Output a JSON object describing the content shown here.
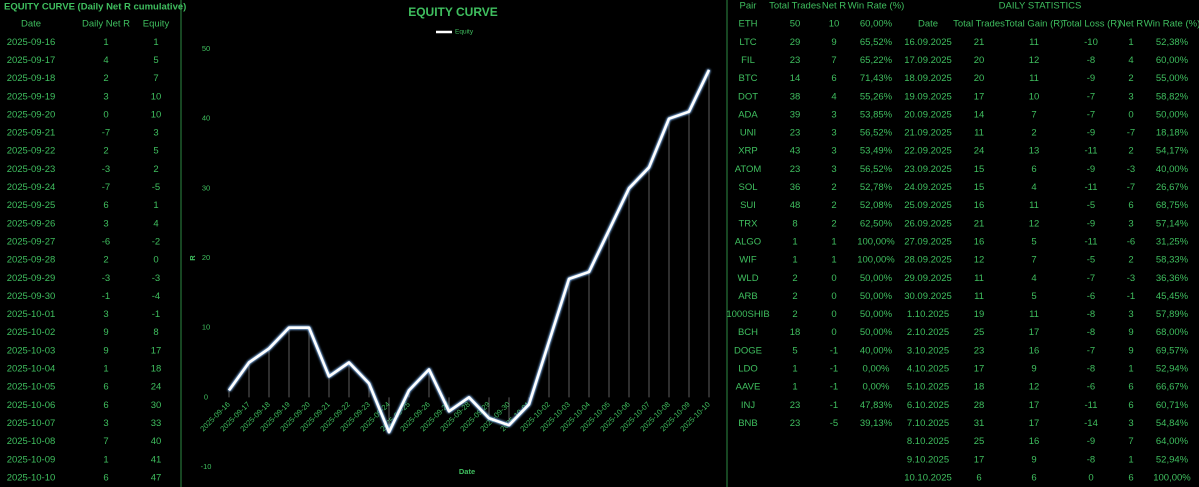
{
  "equity_table": {
    "title": "EQUITY CURVE (Daily Net R cumulative)",
    "columns": [
      "Date",
      "Daily Net R",
      "Equity"
    ],
    "rows": [
      [
        "2025-09-16",
        1,
        1
      ],
      [
        "2025-09-17",
        4,
        5
      ],
      [
        "2025-09-18",
        2,
        7
      ],
      [
        "2025-09-19",
        3,
        10
      ],
      [
        "2025-09-20",
        0,
        10
      ],
      [
        "2025-09-21",
        -7,
        3
      ],
      [
        "2025-09-22",
        2,
        5
      ],
      [
        "2025-09-23",
        -3,
        2
      ],
      [
        "2025-09-24",
        -7,
        -5
      ],
      [
        "2025-09-25",
        6,
        1
      ],
      [
        "2025-09-26",
        3,
        4
      ],
      [
        "2025-09-27",
        -6,
        -2
      ],
      [
        "2025-09-28",
        2,
        0
      ],
      [
        "2025-09-29",
        -3,
        -3
      ],
      [
        "2025-09-30",
        -1,
        -4
      ],
      [
        "2025-10-01",
        3,
        -1
      ],
      [
        "2025-10-02",
        9,
        8
      ],
      [
        "2025-10-03",
        9,
        17
      ],
      [
        "2025-10-04",
        1,
        18
      ],
      [
        "2025-10-05",
        6,
        24
      ],
      [
        "2025-10-06",
        6,
        30
      ],
      [
        "2025-10-07",
        3,
        33
      ],
      [
        "2025-10-08",
        7,
        40
      ],
      [
        "2025-10-09",
        1,
        41
      ],
      [
        "2025-10-10",
        6,
        47
      ]
    ]
  },
  "chart_data": {
    "type": "line",
    "title": "EQUITY CURVE",
    "x_label": "Date",
    "y_label": "R",
    "categories": [
      "2025-09-16",
      "2025-09-17",
      "2025-09-18",
      "2025-09-19",
      "2025-09-20",
      "2025-09-21",
      "2025-09-22",
      "2025-09-23",
      "2025-09-24",
      "2025-09-25",
      "2025-09-26",
      "2025-09-27",
      "2025-09-28",
      "2025-09-29",
      "2025-09-30",
      "2025-10-01",
      "2025-10-02",
      "2025-10-03",
      "2025-10-04",
      "2025-10-05",
      "2025-10-06",
      "2025-10-07",
      "2025-10-08",
      "2025-10-09",
      "2025-10-10"
    ],
    "series": [
      {
        "name": "Equity",
        "color": "#ffffff",
        "values": [
          1,
          5,
          7,
          10,
          10,
          3,
          5,
          2,
          -5,
          1,
          4,
          -2,
          0,
          -3,
          -4,
          -1,
          8,
          17,
          18,
          24,
          30,
          33,
          40,
          41,
          47
        ]
      }
    ],
    "ylim": [
      -10,
      50
    ],
    "yticks": [
      -10,
      0,
      10,
      20,
      30,
      40,
      50
    ],
    "legend": "top"
  },
  "pair_table": {
    "columns": [
      "Pair",
      "Total Trades",
      "Net R",
      "Win Rate (%)"
    ],
    "rows": [
      [
        "ETH",
        50,
        10,
        "60,00%"
      ],
      [
        "LTC",
        29,
        9,
        "65,52%"
      ],
      [
        "FIL",
        23,
        7,
        "65,22%"
      ],
      [
        "BTC",
        14,
        6,
        "71,43%"
      ],
      [
        "DOT",
        38,
        4,
        "55,26%"
      ],
      [
        "ADA",
        39,
        3,
        "53,85%"
      ],
      [
        "UNI",
        23,
        3,
        "56,52%"
      ],
      [
        "XRP",
        43,
        3,
        "53,49%"
      ],
      [
        "ATOM",
        23,
        3,
        "56,52%"
      ],
      [
        "SOL",
        36,
        2,
        "52,78%"
      ],
      [
        "SUI",
        48,
        2,
        "52,08%"
      ],
      [
        "TRX",
        8,
        2,
        "62,50%"
      ],
      [
        "ALGO",
        1,
        1,
        "100,00%"
      ],
      [
        "WIF",
        1,
        1,
        "100,00%"
      ],
      [
        "WLD",
        2,
        0,
        "50,00%"
      ],
      [
        "ARB",
        2,
        0,
        "50,00%"
      ],
      [
        "1000SHIB",
        2,
        0,
        "50,00%"
      ],
      [
        "BCH",
        18,
        0,
        "50,00%"
      ],
      [
        "DOGE",
        5,
        -1,
        "40,00%"
      ],
      [
        "LDO",
        1,
        -1,
        "0,00%"
      ],
      [
        "AAVE",
        1,
        -1,
        "0,00%"
      ],
      [
        "INJ",
        23,
        -1,
        "47,83%"
      ],
      [
        "BNB",
        23,
        -5,
        "39,13%"
      ]
    ]
  },
  "daily_table": {
    "title": "DAILY STATISTICS",
    "columns": [
      "Date",
      "Total Trades",
      "Total Gain (R)",
      "Total Loss (R)",
      "Net R",
      "Win Rate (%)"
    ],
    "rows": [
      [
        "16.09.2025",
        21,
        11,
        -10,
        1,
        "52,38%"
      ],
      [
        "17.09.2025",
        20,
        12,
        -8,
        4,
        "60,00%"
      ],
      [
        "18.09.2025",
        20,
        11,
        -9,
        2,
        "55,00%"
      ],
      [
        "19.09.2025",
        17,
        10,
        -7,
        3,
        "58,82%"
      ],
      [
        "20.09.2025",
        14,
        7,
        -7,
        0,
        "50,00%"
      ],
      [
        "21.09.2025",
        11,
        2,
        -9,
        -7,
        "18,18%"
      ],
      [
        "22.09.2025",
        24,
        13,
        -11,
        2,
        "54,17%"
      ],
      [
        "23.09.2025",
        15,
        6,
        -9,
        -3,
        "40,00%"
      ],
      [
        "24.09.2025",
        15,
        4,
        -11,
        -7,
        "26,67%"
      ],
      [
        "25.09.2025",
        16,
        11,
        -5,
        6,
        "68,75%"
      ],
      [
        "26.09.2025",
        21,
        12,
        -9,
        3,
        "57,14%"
      ],
      [
        "27.09.2025",
        16,
        5,
        -11,
        -6,
        "31,25%"
      ],
      [
        "28.09.2025",
        12,
        7,
        -5,
        2,
        "58,33%"
      ],
      [
        "29.09.2025",
        11,
        4,
        -7,
        -3,
        "36,36%"
      ],
      [
        "30.09.2025",
        11,
        5,
        -6,
        -1,
        "45,45%"
      ],
      [
        "1.10.2025",
        19,
        11,
        -8,
        3,
        "57,89%"
      ],
      [
        "2.10.2025",
        25,
        17,
        -8,
        9,
        "68,00%"
      ],
      [
        "3.10.2025",
        23,
        16,
        -7,
        9,
        "69,57%"
      ],
      [
        "4.10.2025",
        17,
        9,
        -8,
        1,
        "52,94%"
      ],
      [
        "5.10.2025",
        18,
        12,
        -6,
        6,
        "66,67%"
      ],
      [
        "6.10.2025",
        28,
        17,
        -11,
        6,
        "60,71%"
      ],
      [
        "7.10.2025",
        31,
        17,
        -14,
        3,
        "54,84%"
      ],
      [
        "8.10.2025",
        25,
        16,
        -9,
        7,
        "64,00%"
      ],
      [
        "9.10.2025",
        17,
        9,
        -8,
        1,
        "52,94%"
      ],
      [
        "10.10.2025",
        6,
        6,
        0,
        6,
        "100,00%"
      ]
    ]
  }
}
